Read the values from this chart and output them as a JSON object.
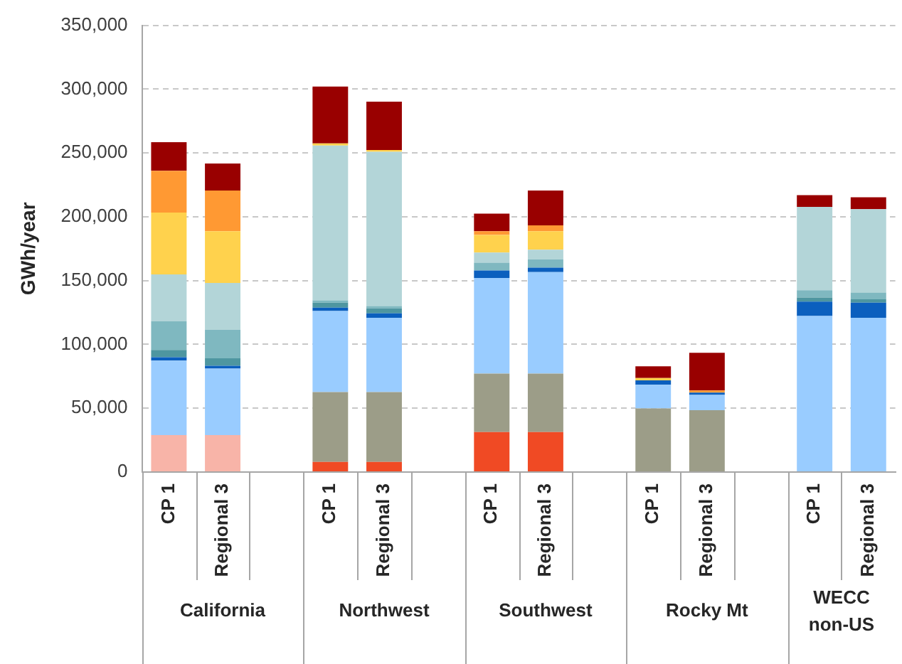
{
  "chart_data": {
    "type": "bar",
    "stacked": true,
    "ylabel": "GWh/year",
    "ylim": [
      0,
      350000
    ],
    "yticks": [
      0,
      {
        "value": 50000,
        "label": "50,000"
      },
      {
        "value": 100000,
        "label": "100,000"
      },
      {
        "value": 150000,
        "label": "150,000"
      },
      {
        "value": 200000,
        "label": "200,000"
      },
      {
        "value": 250000,
        "label": "250,000"
      },
      {
        "value": 300000,
        "label": "300,000"
      },
      {
        "value": 350000,
        "label": "350,000"
      }
    ],
    "grid": "y",
    "legend": false,
    "categories": [
      "CP 1",
      "Regional 3",
      null,
      "CP 1",
      "Regional 3",
      null,
      "CP 1",
      "Regional 3",
      null,
      "CP 1",
      "Regional 3",
      null,
      "CP 1",
      "Regional 3"
    ],
    "annotations": [
      "California",
      "Northwest",
      "Southwest",
      "Rocky Mt",
      "WECC non-US"
    ],
    "series": [
      {
        "color": "#f8b4a8",
        "values": [
          29000,
          29000,
          null,
          null,
          null,
          null,
          null,
          null,
          null,
          null,
          null,
          null,
          null,
          null
        ]
      },
      {
        "color": "#f04a24",
        "values": [
          null,
          null,
          null,
          8000,
          8000,
          null,
          31300,
          31300,
          null,
          null,
          null,
          null,
          null,
          null
        ]
      },
      {
        "color": "#9c9d88",
        "values": [
          null,
          null,
          null,
          54600,
          54600,
          null,
          45900,
          45900,
          null,
          49800,
          48500,
          null,
          null,
          null
        ]
      },
      {
        "color": "#99ccff",
        "values": [
          58300,
          52100,
          null,
          63500,
          58200,
          null,
          74900,
          79400,
          null,
          18600,
          11900,
          null,
          122200,
          120800
        ]
      },
      {
        "color": "#0b5fbe",
        "values": [
          2700,
          2200,
          null,
          2700,
          3600,
          null,
          5800,
          3500,
          null,
          3500,
          1800,
          null,
          11400,
          11900
        ]
      },
      {
        "color": "#4e96a0",
        "values": [
          5700,
          5800,
          null,
          3900,
          3900,
          null,
          null,
          null,
          null,
          null,
          null,
          null,
          3100,
          2700
        ]
      },
      {
        "color": "#7fb8c0",
        "values": [
          22500,
          22500,
          null,
          1800,
          1800,
          null,
          6100,
          6600,
          null,
          null,
          null,
          null,
          5700,
          5300
        ]
      },
      {
        "color": "#b3d5d8",
        "values": [
          36600,
          36600,
          null,
          121300,
          120800,
          null,
          8000,
          7500,
          null,
          null,
          null,
          null,
          65300,
          65200
        ]
      },
      {
        "color": "#ffd24d",
        "values": [
          48500,
          40500,
          null,
          1700,
          1400,
          null,
          13700,
          14500,
          null,
          1700,
          null,
          null,
          null,
          null
        ]
      },
      {
        "color": "#ff9933",
        "values": [
          32700,
          31800,
          null,
          null,
          null,
          null,
          3000,
          4500,
          null,
          null,
          1700,
          null,
          null,
          null
        ]
      },
      {
        "color": "#990000",
        "values": [
          22400,
          21200,
          null,
          44500,
          37900,
          null,
          13700,
          27300,
          null,
          9300,
          29600,
          null,
          9300,
          9300
        ]
      }
    ]
  }
}
